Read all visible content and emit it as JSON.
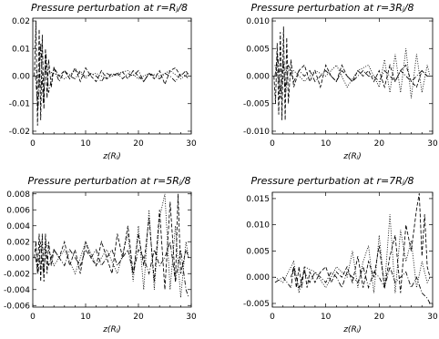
{
  "chart_data": [
    {
      "type": "line",
      "title": "Pressure perturbation at r=Rⱼ/8",
      "xlabel": "z(Rⱼ)",
      "xlim": [
        0,
        30
      ],
      "ylim": [
        -0.021,
        0.021
      ],
      "xticks": [
        0,
        10,
        20,
        30
      ],
      "xtick_labels": [
        "0",
        "10",
        "20",
        "30"
      ],
      "yticks": [
        0.02,
        0.01,
        0.0,
        -0.01,
        -0.02
      ],
      "ytick_labels": [
        "0.02",
        "0.01",
        "0.00",
        "-0.01",
        "-0.02"
      ],
      "grid": false,
      "series": [
        {
          "style": "dashed",
          "x": [
            0.3,
            0.6,
            0.9,
            1.2,
            1.5,
            1.8,
            2.1,
            2.4,
            2.7,
            3.0,
            3.5,
            4,
            5,
            6,
            7,
            8,
            9,
            10,
            11,
            12,
            13,
            14,
            15,
            16,
            17,
            18,
            19,
            20,
            21,
            22,
            23,
            24,
            25,
            26,
            27,
            28,
            29,
            29.5
          ],
          "y": [
            0.0,
            0.02,
            -0.018,
            0.017,
            -0.016,
            0.015,
            -0.012,
            0.01,
            -0.008,
            0.006,
            -0.004,
            0.003,
            0.0,
            0.002,
            -0.001,
            0.003,
            -0.002,
            0.003,
            0.0,
            -0.002,
            0.002,
            -0.001,
            0.001,
            0.0,
            0.0015,
            -0.001,
            0.002,
            0.0,
            -0.002,
            0.001,
            -0.001,
            0.002,
            -0.003,
            0.002,
            0.003,
            0.0,
            0.002,
            0.0
          ]
        },
        {
          "style": "dash-dot",
          "x": [
            0.5,
            1,
            1.5,
            2,
            2.5,
            3,
            4,
            5,
            6,
            7,
            8,
            9,
            10,
            11,
            12,
            13,
            14,
            15,
            16,
            17,
            18,
            19,
            20,
            21,
            22,
            23,
            24,
            25,
            26,
            27,
            28,
            29,
            29.5
          ],
          "y": [
            0.0,
            -0.012,
            0.012,
            -0.01,
            0.008,
            -0.006,
            0.003,
            -0.002,
            0.002,
            0.0,
            -0.001,
            0.002,
            -0.001,
            0.001,
            0.0,
            -0.002,
            0.001,
            0.0,
            0.001,
            -0.001,
            0.001,
            0.0,
            0.002,
            -0.002,
            0.001,
            0.0,
            -0.001,
            0.001,
            0.0,
            -0.002,
            0.001,
            0.0,
            -0.001
          ]
        },
        {
          "style": "dotted",
          "x": [
            0.5,
            1.5,
            2.5,
            4,
            6,
            8,
            10,
            12,
            14,
            16,
            18,
            20,
            22,
            24,
            26,
            28,
            29.5
          ],
          "y": [
            0.003,
            -0.004,
            0.002,
            0.001,
            -0.001,
            0.002,
            0.0,
            0.001,
            -0.001,
            0.001,
            0.002,
            -0.001,
            0.001,
            0.0,
            0.002,
            -0.001,
            0.001
          ]
        }
      ]
    },
    {
      "type": "line",
      "title": "Pressure perturbation at r=3Rⱼ/8",
      "xlabel": "z(Rⱼ)",
      "xlim": [
        0,
        30
      ],
      "ylim": [
        -0.0105,
        0.0105
      ],
      "xticks": [
        0,
        10,
        20,
        30
      ],
      "xtick_labels": [
        "0",
        "10",
        "20",
        "30"
      ],
      "yticks": [
        0.01,
        0.005,
        0.0,
        -0.005,
        -0.01
      ],
      "ytick_labels": [
        "0.010",
        "0.005",
        "0.000",
        "-0.005",
        "-0.010"
      ],
      "grid": false,
      "series": [
        {
          "style": "dashed",
          "x": [
            0.3,
            0.6,
            0.9,
            1.2,
            1.5,
            1.8,
            2.1,
            2.4,
            2.7,
            3.0,
            3.5,
            4,
            5,
            6,
            7,
            8,
            9,
            10,
            11,
            12,
            13,
            14,
            15,
            16,
            17,
            18,
            19,
            20,
            21,
            22,
            23,
            24,
            25,
            26,
            27,
            28,
            29,
            29.5
          ],
          "y": [
            0.0,
            -0.005,
            0.006,
            -0.007,
            0.008,
            -0.008,
            0.009,
            -0.008,
            0.007,
            -0.005,
            0.003,
            -0.002,
            0.001,
            0.002,
            -0.001,
            0.001,
            -0.002,
            0.002,
            0.0,
            -0.001,
            0.002,
            0.0,
            -0.001,
            0.001,
            0.0,
            0.001,
            -0.001,
            0.001,
            -0.002,
            0.002,
            -0.001,
            0.001,
            0.002,
            -0.001,
            -0.002,
            0.001,
            0.0,
            0.0
          ]
        },
        {
          "style": "dash-dot",
          "x": [
            0.5,
            1,
            1.5,
            2,
            2.5,
            3,
            4,
            5,
            6,
            7,
            8,
            9,
            10,
            11,
            12,
            13,
            14,
            15,
            16,
            17,
            18,
            19,
            20,
            21,
            22,
            23,
            24,
            25,
            26,
            27,
            28,
            29,
            29.5
          ],
          "y": [
            0.0,
            0.004,
            -0.004,
            0.003,
            -0.003,
            0.002,
            -0.001,
            0.001,
            0.0,
            0.001,
            -0.001,
            0.0,
            0.001,
            0.0,
            -0.001,
            0.001,
            0.0,
            -0.001,
            0.0,
            0.001,
            0.0,
            0.0,
            -0.001,
            0.001,
            0.0,
            -0.001,
            0.001,
            0.0,
            -0.001,
            0.0,
            0.001,
            0.0,
            0.0
          ]
        },
        {
          "style": "dotted",
          "x": [
            0.5,
            1.5,
            2.5,
            4,
            6,
            8,
            10,
            12,
            14,
            16,
            18,
            20,
            21,
            22,
            23,
            24,
            25,
            26,
            27,
            28,
            29,
            29.5
          ],
          "y": [
            0.002,
            -0.002,
            0.001,
            0.001,
            -0.001,
            0.001,
            0.0,
            0.002,
            -0.002,
            0.001,
            0.002,
            -0.002,
            0.003,
            -0.003,
            0.004,
            -0.003,
            0.005,
            -0.004,
            0.004,
            -0.003,
            0.002,
            0.0
          ]
        }
      ]
    },
    {
      "type": "line",
      "title": "Pressure perturbation at r=5Rⱼ/8",
      "xlabel": "z(Rⱼ)",
      "xlim": [
        0,
        30
      ],
      "ylim": [
        -0.0062,
        0.0082
      ],
      "xticks": [
        0,
        10,
        20,
        30
      ],
      "xtick_labels": [
        "0",
        "10",
        "20",
        "30"
      ],
      "yticks": [
        0.008,
        0.006,
        0.004,
        0.002,
        0.0,
        -0.002,
        -0.004,
        -0.006
      ],
      "ytick_labels": [
        "0.008",
        "0.006",
        "0.004",
        "0.002",
        "0.000",
        "-0.002",
        "-0.004",
        "-0.006"
      ],
      "grid": false,
      "series": [
        {
          "style": "dashed",
          "x": [
            0.3,
            0.6,
            0.9,
            1.2,
            1.5,
            1.8,
            2.1,
            2.4,
            2.7,
            3.0,
            3.5,
            4,
            5,
            6,
            7,
            8,
            9,
            10,
            11,
            12,
            13,
            14,
            15,
            16,
            17,
            18,
            19,
            20,
            21,
            22,
            23,
            24,
            25,
            26,
            27,
            27.5,
            28,
            29,
            29.5
          ],
          "y": [
            0.0,
            0.002,
            -0.002,
            0.003,
            -0.003,
            0.003,
            -0.003,
            0.003,
            -0.002,
            0.002,
            -0.001,
            0.001,
            0.0,
            0.002,
            -0.001,
            0.001,
            -0.002,
            0.002,
            0.0,
            -0.001,
            0.002,
            0.0,
            -0.002,
            0.003,
            0.0,
            0.004,
            -0.002,
            0.003,
            -0.001,
            0.005,
            -0.003,
            0.006,
            -0.004,
            0.007,
            -0.003,
            0.008,
            -0.002,
            0.001,
            0.0
          ]
        },
        {
          "style": "dash-dot",
          "x": [
            0.5,
            1,
            1.5,
            2,
            2.5,
            3,
            4,
            5,
            6,
            7,
            8,
            9,
            10,
            11,
            12,
            13,
            14,
            15,
            16,
            17,
            18,
            19,
            20,
            21,
            22,
            23,
            24,
            25,
            26,
            27,
            28,
            29,
            29.5
          ],
          "y": [
            0.0,
            -0.002,
            0.002,
            -0.002,
            0.001,
            -0.001,
            0.001,
            0.0,
            -0.001,
            0.001,
            0.0,
            -0.001,
            0.001,
            0.0,
            0.001,
            -0.001,
            0.0,
            0.001,
            -0.001,
            0.0,
            0.001,
            -0.002,
            0.001,
            0.0,
            -0.002,
            0.001,
            -0.001,
            0.0,
            0.002,
            -0.003,
            0.001,
            -0.004,
            -0.005
          ]
        },
        {
          "style": "dotted",
          "x": [
            0.5,
            1.5,
            2.5,
            4,
            6,
            8,
            10,
            12,
            14,
            16,
            18,
            19,
            20,
            21,
            22,
            23,
            24,
            25,
            26,
            27,
            28,
            29,
            29.5
          ],
          "y": [
            0.001,
            -0.001,
            0.002,
            -0.001,
            0.001,
            -0.002,
            0.002,
            -0.001,
            0.001,
            -0.002,
            0.003,
            -0.003,
            0.004,
            -0.004,
            0.006,
            -0.004,
            0.005,
            0.008,
            -0.004,
            0.004,
            -0.005,
            0.002,
            0.0
          ]
        }
      ]
    },
    {
      "type": "line",
      "title": "Pressure perturbation at r=7Rⱼ/8",
      "xlabel": "z(Rⱼ)",
      "xlim": [
        0,
        30
      ],
      "ylim": [
        -0.0057,
        0.0162
      ],
      "xticks": [
        0,
        10,
        20,
        30
      ],
      "xtick_labels": [
        "0",
        "10",
        "20",
        "30"
      ],
      "yticks": [
        0.015,
        0.01,
        0.005,
        0.0,
        -0.005
      ],
      "ytick_labels": [
        "0.015",
        "0.010",
        "0.005",
        "0.000",
        "-0.005"
      ],
      "grid": false,
      "series": [
        {
          "style": "dashed",
          "x": [
            3.5,
            4,
            4.5,
            5,
            5.5,
            6,
            6.5,
            7,
            8,
            9,
            10,
            11,
            12,
            13,
            14,
            15,
            16,
            17,
            18,
            19,
            20,
            21,
            22,
            23,
            24,
            25,
            26,
            27,
            27.5,
            28,
            28.5,
            29,
            29.5
          ],
          "y": [
            0.0,
            0.002,
            -0.002,
            0.002,
            -0.002,
            0.002,
            -0.002,
            0.001,
            -0.001,
            0.001,
            0.002,
            -0.001,
            0.001,
            0.0,
            0.002,
            -0.001,
            0.004,
            -0.002,
            0.003,
            0.0,
            0.006,
            -0.002,
            0.004,
            0.008,
            -0.003,
            0.01,
            0.005,
            0.013,
            0.016,
            0.004,
            0.012,
            0.002,
            0.0
          ]
        },
        {
          "style": "dash-dot",
          "x": [
            0.5,
            2,
            3.5,
            4,
            5,
            6,
            7,
            8,
            9,
            10,
            11,
            12,
            13,
            14,
            15,
            16,
            17,
            18,
            19,
            20,
            21,
            22,
            23,
            24,
            25,
            26,
            27,
            28,
            29,
            29.5
          ],
          "y": [
            -0.001,
            0.0,
            -0.002,
            0.002,
            -0.002,
            0.001,
            -0.001,
            0.001,
            0.0,
            -0.001,
            0.001,
            0.0,
            -0.002,
            0.001,
            0.0,
            -0.001,
            0.002,
            -0.002,
            0.001,
            0.0,
            -0.002,
            0.002,
            -0.001,
            0.0,
            0.001,
            -0.002,
            0.0,
            -0.003,
            -0.004,
            -0.005
          ]
        },
        {
          "style": "dotted",
          "x": [
            0.5,
            2,
            4,
            5,
            6,
            8,
            10,
            12,
            14,
            15,
            16,
            17,
            18,
            19,
            20,
            21,
            22,
            23,
            24,
            25,
            26,
            27,
            28,
            29,
            29.5
          ],
          "y": [
            0.0,
            -0.001,
            0.003,
            -0.003,
            0.002,
            0.001,
            -0.002,
            0.002,
            0.0,
            0.005,
            -0.002,
            0.003,
            0.006,
            -0.003,
            0.008,
            -0.002,
            0.012,
            -0.003,
            0.009,
            0.003,
            0.007,
            -0.002,
            0.003,
            -0.001,
            0.0
          ]
        }
      ]
    }
  ]
}
